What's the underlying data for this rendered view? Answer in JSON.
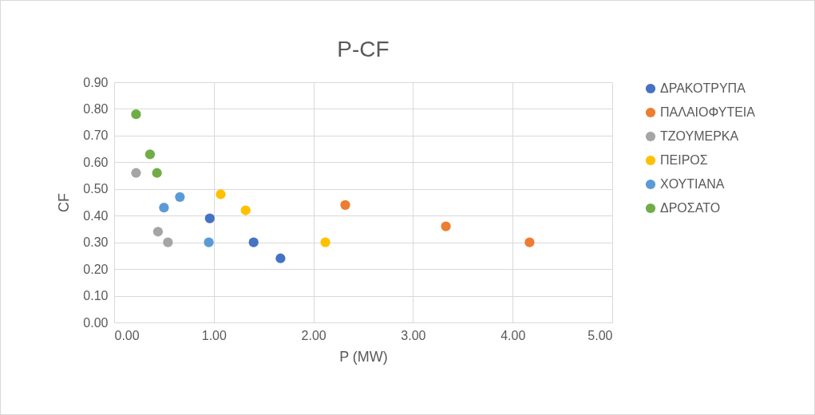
{
  "chart_data": {
    "type": "scatter",
    "title": "P-CF",
    "xlabel": "P (MW)",
    "ylabel": "CF",
    "xlim": [
      0,
      5
    ],
    "xticks": [
      {
        "value": 0,
        "label": "0.00"
      },
      {
        "value": 1,
        "label": "1.00"
      },
      {
        "value": 2,
        "label": "2.00"
      },
      {
        "value": 3,
        "label": "3.00"
      },
      {
        "value": 4,
        "label": "4.00"
      },
      {
        "value": 5,
        "label": "5.00"
      }
    ],
    "ylim": [
      0,
      0.9
    ],
    "yticks": [
      {
        "value": 0,
        "label": "0.00"
      },
      {
        "value": 0.1,
        "label": "0.10"
      },
      {
        "value": 0.2,
        "label": "0.20"
      },
      {
        "value": 0.3,
        "label": "0.30"
      },
      {
        "value": 0.4,
        "label": "0.40"
      },
      {
        "value": 0.5,
        "label": "0.50"
      },
      {
        "value": 0.6,
        "label": "0.60"
      },
      {
        "value": 0.7,
        "label": "0.70"
      },
      {
        "value": 0.8,
        "label": "0.80"
      },
      {
        "value": 0.9,
        "label": "0.90"
      }
    ],
    "grid": true,
    "legend": "right",
    "marker": "circle",
    "series": [
      {
        "name": "ΔΡΑΚΟΤΡΥΠΑ",
        "color": "#4472c4",
        "x": [
          0.96,
          1.4,
          1.67
        ],
        "values": [
          0.39,
          0.3,
          0.24
        ]
      },
      {
        "name": "ΠΑΛΑΙΟΦΥΤΕΙΑ",
        "color": "#ed7d31",
        "x": [
          2.32,
          3.33,
          4.17
        ],
        "values": [
          0.44,
          0.36,
          0.3
        ]
      },
      {
        "name": "ΤΖΟΥΜΕΡΚΑ",
        "color": "#a5a5a5",
        "x": [
          0.22,
          0.44,
          0.54
        ],
        "values": [
          0.56,
          0.34,
          0.3
        ]
      },
      {
        "name": "ΠΕΙΡΟΣ",
        "color": "#ffc000",
        "x": [
          1.07,
          1.32,
          2.12
        ],
        "values": [
          0.48,
          0.42,
          0.3
        ]
      },
      {
        "name": "ΧΟΥΤΙΑΝΑ",
        "color": "#5b9bd5",
        "x": [
          0.66,
          0.5,
          0.95
        ],
        "values": [
          0.47,
          0.43,
          0.3
        ]
      },
      {
        "name": "ΔΡΟΣΑΤΟ",
        "color": "#70ad47",
        "x": [
          0.22,
          0.36,
          0.43
        ],
        "values": [
          0.78,
          0.63,
          0.56
        ]
      }
    ]
  }
}
